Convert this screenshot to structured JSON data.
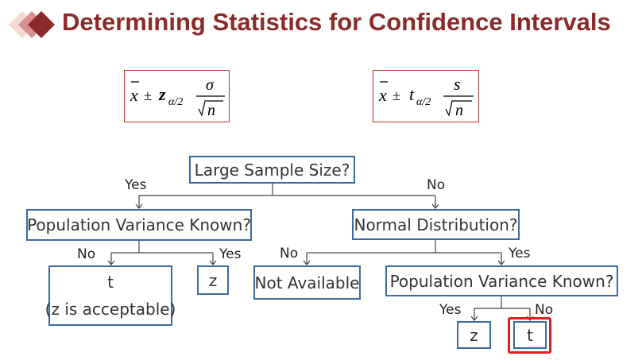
{
  "header": {
    "title": "Determining Statistics for Confidence Intervals",
    "logo_icon": "diamond-logo-icon"
  },
  "formulas": {
    "z": {
      "xbar": "x",
      "pm": "±",
      "stat": "z",
      "sub": "α/2",
      "num": "σ",
      "den": "n"
    },
    "t": {
      "xbar": "x",
      "pm": "±",
      "stat": "t",
      "sub": "α/2",
      "num": "s",
      "den": "n"
    }
  },
  "nodes": {
    "large_sample": "Large Sample Size?",
    "pop_var_known_1": "Population Variance Known?",
    "normal_dist": "Normal Distribution?",
    "result_t_1": "t",
    "result_t_1_note": "(z is acceptable)",
    "result_z_1": "z",
    "not_available": "Not Available",
    "pop_var_known_2": "Population Variance Known?",
    "result_z_2": "z",
    "result_t_2": "t"
  },
  "edges": {
    "yes_1": "Yes",
    "no_1": "No",
    "no_2": "No",
    "yes_2": "Yes",
    "no_3": "No",
    "yes_3": "Yes",
    "yes_4": "Yes",
    "no_4": "No"
  },
  "colors": {
    "title": "#8B2A2A",
    "box_border": "#3b6aa0",
    "formula_border": "#c0392b",
    "highlight": "#e02020"
  }
}
